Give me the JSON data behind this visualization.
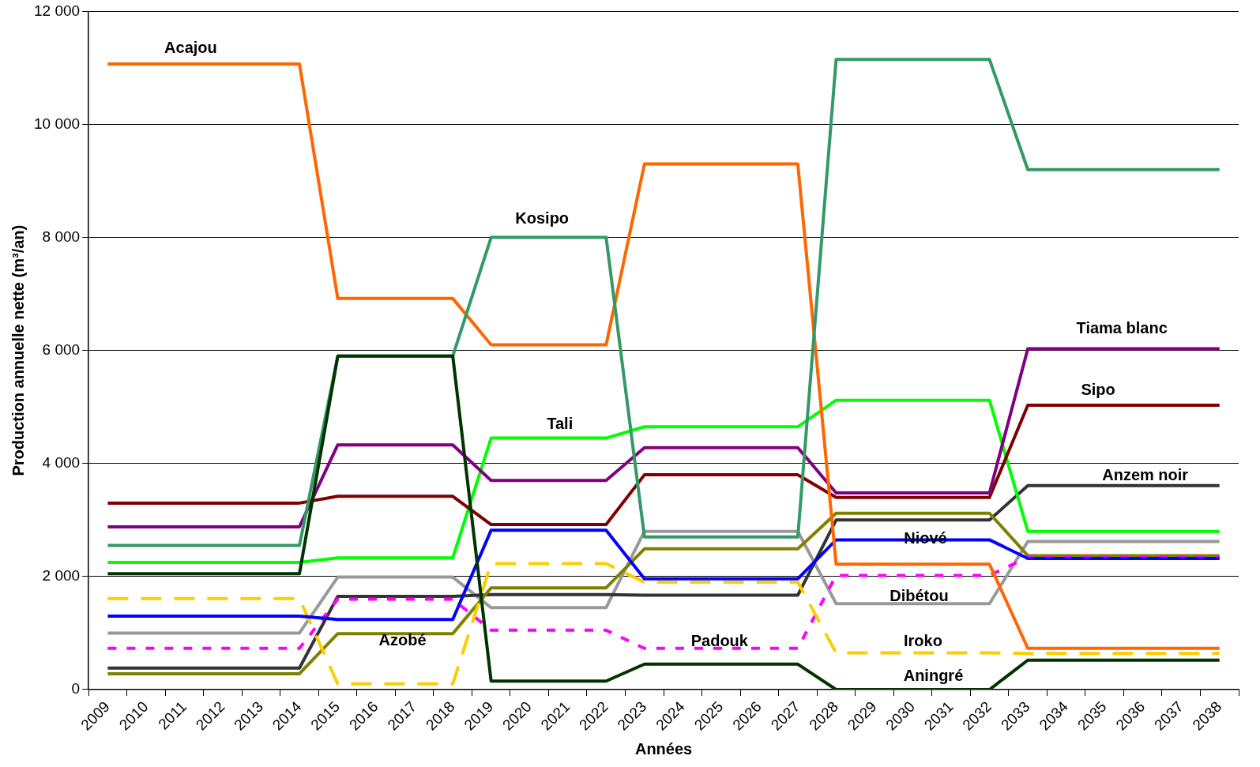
{
  "chart_data": {
    "type": "line",
    "xlabel": "Années",
    "ylabel": "Production annuelle nette (m³/an)",
    "categories": [
      "2009",
      "2010",
      "2011",
      "2012",
      "2013",
      "2014",
      "2015",
      "2016",
      "2017",
      "2018",
      "2019",
      "2020",
      "2021",
      "2022",
      "2023",
      "2024",
      "2025",
      "2026",
      "2027",
      "2028",
      "2029",
      "2030",
      "2031",
      "2032",
      "2033",
      "2034",
      "2035",
      "2036",
      "2037",
      "2038"
    ],
    "ylim": [
      0,
      12000
    ],
    "yticks": [
      {
        "value": 0,
        "label": "0"
      },
      {
        "value": 2000,
        "label": "2 000"
      },
      {
        "value": 4000,
        "label": "4 000"
      },
      {
        "value": 6000,
        "label": "6 000"
      },
      {
        "value": 8000,
        "label": "8 000"
      },
      {
        "value": 10000,
        "label": "10 000"
      },
      {
        "value": 12000,
        "label": "12 000"
      }
    ],
    "grid": "y",
    "legend": false,
    "marker": "none",
    "line_style": "solid",
    "series": [
      {
        "name": "Aningré",
        "color": "#003300",
        "values": [
          2050,
          2050,
          2050,
          2050,
          2050,
          2050,
          5900,
          5900,
          5900,
          5900,
          150,
          150,
          150,
          150,
          450,
          450,
          450,
          450,
          450,
          0,
          0,
          0,
          0,
          0,
          520,
          520,
          520,
          520,
          520,
          520
        ]
      },
      {
        "name": "Kosipo",
        "color": "#339966",
        "values": [
          2550,
          2550,
          2550,
          2550,
          2550,
          2550,
          5900,
          5900,
          5900,
          5900,
          8000,
          8000,
          8000,
          8000,
          2700,
          2700,
          2700,
          2700,
          2700,
          11150,
          11150,
          11150,
          11150,
          11150,
          9200,
          9200,
          9200,
          9200,
          9200,
          9200
        ]
      },
      {
        "name": "Acajou",
        "color": "#ff6600",
        "values": [
          11070,
          11070,
          11070,
          11070,
          11070,
          11070,
          6920,
          6920,
          6920,
          6920,
          6100,
          6100,
          6100,
          6100,
          9300,
          9300,
          9300,
          9300,
          9300,
          2220,
          2220,
          2220,
          2220,
          2220,
          730,
          730,
          730,
          730,
          730,
          730
        ]
      },
      {
        "name": "Tiama blanc",
        "color": "#800080",
        "values": [
          2880,
          2880,
          2880,
          2880,
          2880,
          2880,
          4330,
          4330,
          4330,
          4330,
          3700,
          3700,
          3700,
          3700,
          4280,
          4280,
          4280,
          4280,
          4280,
          3480,
          3480,
          3480,
          3480,
          3480,
          6030,
          6030,
          6030,
          6030,
          6030,
          6030
        ]
      },
      {
        "name": "Sipo",
        "color": "#800000",
        "values": [
          3300,
          3300,
          3300,
          3300,
          3300,
          3300,
          3420,
          3420,
          3420,
          3420,
          2920,
          2920,
          2920,
          2920,
          3800,
          3800,
          3800,
          3800,
          3800,
          3400,
          3400,
          3400,
          3400,
          3400,
          5030,
          5030,
          5030,
          5030,
          5030,
          5030
        ]
      },
      {
        "name": "Tali",
        "color": "#00ff00",
        "values": [
          2250,
          2250,
          2250,
          2250,
          2250,
          2250,
          2330,
          2330,
          2330,
          2330,
          4450,
          4450,
          4450,
          4450,
          4650,
          4650,
          4650,
          4650,
          4650,
          5120,
          5120,
          5120,
          5120,
          5120,
          2800,
          2800,
          2800,
          2800,
          2800,
          2800
        ]
      },
      {
        "name": "Niové",
        "color": "#0000ff",
        "values": [
          1300,
          1300,
          1300,
          1300,
          1300,
          1300,
          1240,
          1240,
          1240,
          1240,
          2820,
          2820,
          2820,
          2820,
          1960,
          1960,
          1960,
          1960,
          1960,
          2650,
          2650,
          2650,
          2650,
          2650,
          2320,
          2320,
          2320,
          2320,
          2320,
          2320
        ]
      },
      {
        "name": "Iroko",
        "color": "#ffcc00",
        "line_style": "dashed",
        "values": [
          1610,
          1610,
          1610,
          1610,
          1610,
          1610,
          100,
          100,
          100,
          100,
          2230,
          2230,
          2230,
          2230,
          1900,
          1900,
          1900,
          1900,
          1900,
          650,
          650,
          650,
          650,
          650,
          640,
          640,
          640,
          640,
          640,
          640
        ]
      },
      {
        "name": "Padouk",
        "color": "#ff00ff",
        "line_style": "dotted",
        "values": [
          730,
          730,
          730,
          730,
          730,
          730,
          1600,
          1600,
          1600,
          1600,
          1050,
          1050,
          1050,
          1050,
          730,
          730,
          730,
          730,
          730,
          2020,
          2020,
          2020,
          2020,
          2020,
          2340,
          2340,
          2340,
          2340,
          2340,
          2340
        ]
      },
      {
        "name": "Azobé",
        "color": "#808000",
        "values": [
          280,
          280,
          280,
          280,
          280,
          280,
          990,
          990,
          990,
          990,
          1800,
          1800,
          1800,
          1800,
          2490,
          2490,
          2490,
          2490,
          2490,
          3120,
          3120,
          3120,
          3120,
          3120,
          2370,
          2370,
          2370,
          2370,
          2370,
          2370
        ]
      },
      {
        "name": "Anzem noir",
        "color": "#333333",
        "values": [
          380,
          380,
          380,
          380,
          380,
          380,
          1650,
          1650,
          1650,
          1650,
          1680,
          1680,
          1680,
          1680,
          1670,
          1670,
          1670,
          1670,
          1670,
          3000,
          3000,
          3000,
          3000,
          3000,
          3610,
          3610,
          3610,
          3610,
          3610,
          3610
        ]
      },
      {
        "name": "Dibétou",
        "color": "#999999",
        "values": [
          1000,
          1000,
          1000,
          1000,
          1000,
          1000,
          1990,
          1990,
          1990,
          1990,
          1450,
          1450,
          1450,
          1450,
          2800,
          2800,
          2800,
          2800,
          2800,
          1520,
          1520,
          1520,
          1520,
          1520,
          2620,
          2620,
          2620,
          2620,
          2620,
          2620
        ]
      }
    ]
  }
}
